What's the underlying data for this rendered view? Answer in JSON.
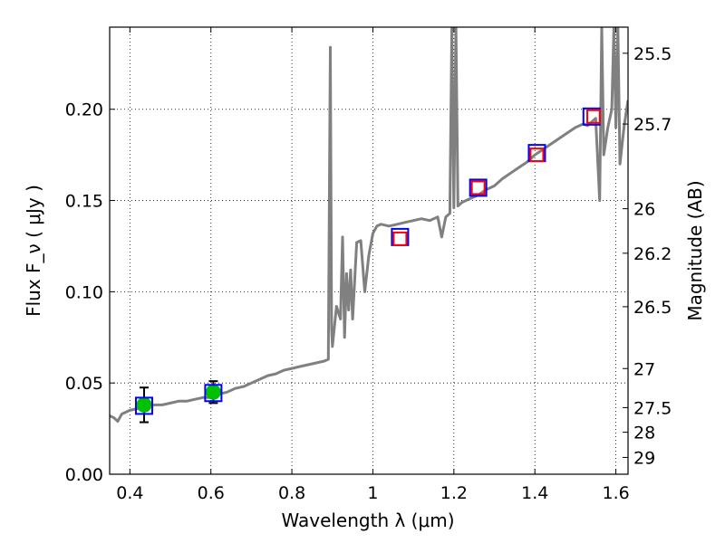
{
  "chart_data": {
    "type": "line",
    "title": "",
    "xlabel": "Wavelength  λ (μm)",
    "ylabel": "Flux  F_ν  ( μJy )",
    "ylabel_right": "Magnitude (AB)",
    "xlim": [
      0.35,
      1.63
    ],
    "ylim": [
      0.0,
      0.245
    ],
    "grid": true,
    "x_ticks": [
      {
        "value": 0.4,
        "label": "0.4"
      },
      {
        "value": 0.6,
        "label": "0.6"
      },
      {
        "value": 0.8,
        "label": "0.8"
      },
      {
        "value": 1.0,
        "label": "1"
      },
      {
        "value": 1.2,
        "label": "1.2"
      },
      {
        "value": 1.4,
        "label": "1.4"
      },
      {
        "value": 1.6,
        "label": "1.6"
      }
    ],
    "y_ticks": [
      {
        "value": 0.0,
        "label": "0.00"
      },
      {
        "value": 0.05,
        "label": "0.05"
      },
      {
        "value": 0.1,
        "label": "0.10"
      },
      {
        "value": 0.15,
        "label": "0.15"
      },
      {
        "value": 0.2,
        "label": "0.20"
      }
    ],
    "right_ticks": [
      {
        "label": "25.5",
        "flux": 0.2307
      },
      {
        "label": "25.7",
        "flux": 0.1919
      },
      {
        "label": "26",
        "flux": 0.1455
      },
      {
        "label": "26.2",
        "flux": 0.1211
      },
      {
        "label": "26.5",
        "flux": 0.0918
      },
      {
        "label": "27",
        "flux": 0.0579
      },
      {
        "label": "27.5",
        "flux": 0.0365
      },
      {
        "label": "28",
        "flux": 0.023
      },
      {
        "label": "29",
        "flux": 0.0092
      }
    ],
    "model_spectrum": {
      "color": "#808080",
      "x": [
        0.35,
        0.36,
        0.37,
        0.38,
        0.39,
        0.4,
        0.42,
        0.44,
        0.46,
        0.48,
        0.5,
        0.52,
        0.54,
        0.56,
        0.58,
        0.6,
        0.62,
        0.64,
        0.66,
        0.68,
        0.7,
        0.72,
        0.74,
        0.76,
        0.78,
        0.8,
        0.82,
        0.84,
        0.86,
        0.88,
        0.89,
        0.895,
        0.898,
        0.9,
        0.91,
        0.92,
        0.925,
        0.93,
        0.935,
        0.94,
        0.945,
        0.95,
        0.96,
        0.97,
        0.98,
        0.99,
        1.0,
        1.01,
        1.02,
        1.04,
        1.06,
        1.08,
        1.1,
        1.12,
        1.14,
        1.16,
        1.17,
        1.18,
        1.19,
        1.195,
        1.2,
        1.205,
        1.21,
        1.22,
        1.24,
        1.26,
        1.28,
        1.3,
        1.32,
        1.34,
        1.36,
        1.38,
        1.4,
        1.42,
        1.44,
        1.46,
        1.48,
        1.5,
        1.52,
        1.53,
        1.54,
        1.55,
        1.56,
        1.565,
        1.57,
        1.58,
        1.59,
        1.595,
        1.6,
        1.605,
        1.61,
        1.62,
        1.63
      ],
      "y": [
        0.032,
        0.031,
        0.029,
        0.033,
        0.034,
        0.035,
        0.036,
        0.037,
        0.038,
        0.038,
        0.039,
        0.04,
        0.04,
        0.041,
        0.042,
        0.042,
        0.044,
        0.045,
        0.047,
        0.048,
        0.05,
        0.052,
        0.054,
        0.055,
        0.057,
        0.058,
        0.059,
        0.06,
        0.061,
        0.062,
        0.063,
        0.234,
        0.08,
        0.07,
        0.092,
        0.085,
        0.13,
        0.075,
        0.11,
        0.09,
        0.112,
        0.085,
        0.127,
        0.128,
        0.1,
        0.12,
        0.132,
        0.136,
        0.137,
        0.136,
        0.137,
        0.138,
        0.139,
        0.14,
        0.139,
        0.141,
        0.13,
        0.141,
        0.143,
        0.245,
        0.146,
        0.245,
        0.147,
        0.149,
        0.151,
        0.153,
        0.156,
        0.158,
        0.162,
        0.165,
        0.168,
        0.171,
        0.175,
        0.178,
        0.181,
        0.184,
        0.187,
        0.19,
        0.192,
        0.191,
        0.193,
        0.195,
        0.15,
        0.245,
        0.175,
        0.19,
        0.2,
        0.245,
        0.19,
        0.245,
        0.17,
        0.19,
        0.205
      ]
    },
    "series": [
      {
        "marker": "circle",
        "color": "#00c000",
        "x": [
          0.435,
          0.606
        ],
        "y": [
          0.038,
          0.045
        ],
        "yerr": [
          0.0095,
          0.006
        ]
      },
      {
        "marker": "open-square",
        "color": "#0000ff",
        "x": [
          0.435,
          0.606,
          1.067,
          1.26,
          1.405,
          1.54
        ],
        "y": [
          0.0375,
          0.0445,
          0.13,
          0.157,
          0.176,
          0.196
        ]
      },
      {
        "marker": "open-square",
        "color": "#ff0000",
        "x": [
          1.067,
          1.26,
          1.405,
          1.545
        ],
        "y": [
          0.129,
          0.157,
          0.175,
          0.196
        ]
      }
    ]
  }
}
